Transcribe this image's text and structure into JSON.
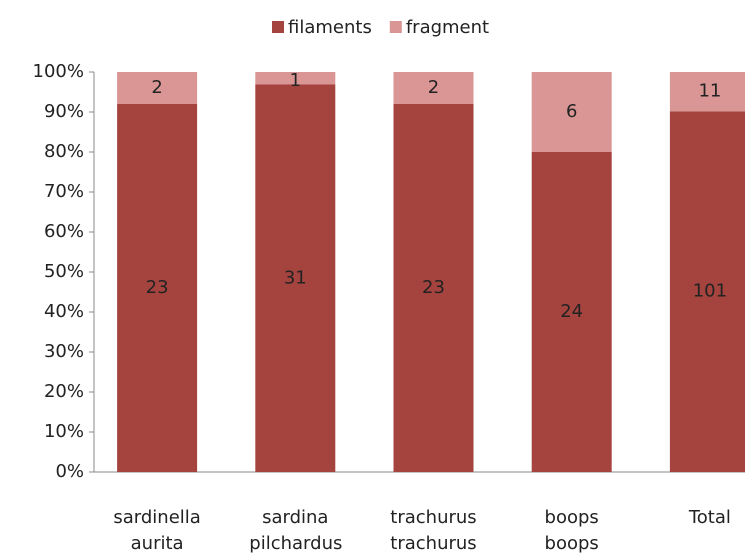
{
  "chart_data": {
    "type": "bar",
    "stacked": "percent",
    "categories": [
      "sardinella aurita",
      "sardina pilchardus",
      "trachurus trachurus",
      "boops boops",
      "Total"
    ],
    "series": [
      {
        "name": "filaments",
        "color": "#a5443f",
        "values": [
          23,
          31,
          23,
          24,
          101
        ]
      },
      {
        "name": "fragment",
        "color": "#d99694",
        "values": [
          2,
          1,
          2,
          6,
          11
        ]
      }
    ],
    "ylim": [
      0,
      100
    ],
    "yticks": [
      {
        "value": 0,
        "label": "0%"
      },
      {
        "value": 10,
        "label": "10%"
      },
      {
        "value": 20,
        "label": "20%"
      },
      {
        "value": 30,
        "label": "30%"
      },
      {
        "value": 40,
        "label": "40%"
      },
      {
        "value": 50,
        "label": "50%"
      },
      {
        "value": 60,
        "label": "60%"
      },
      {
        "value": 70,
        "label": "70%"
      },
      {
        "value": 80,
        "label": "80%"
      },
      {
        "value": 90,
        "label": "90%"
      },
      {
        "value": 100,
        "label": "100%"
      }
    ],
    "legend": "top",
    "grid": false
  }
}
